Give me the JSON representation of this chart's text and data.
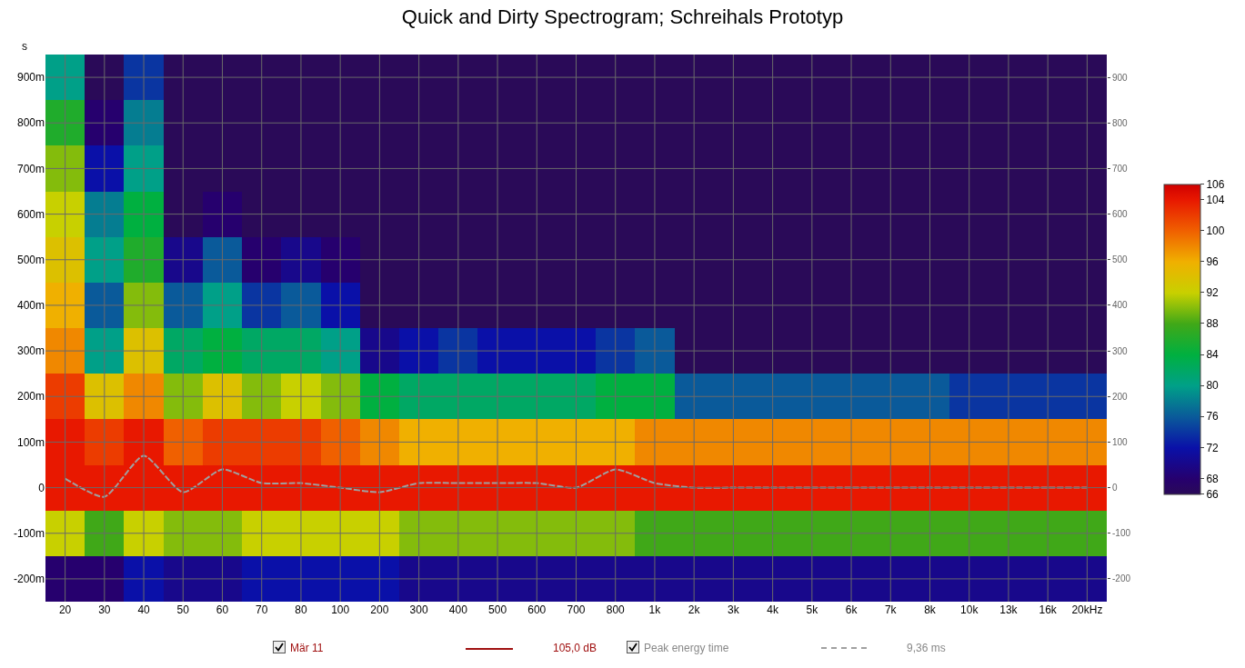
{
  "chart_data": {
    "type": "heatmap",
    "title": "Quick and Dirty Spectrogram; Schreihals Prototyp",
    "ylabel": "s",
    "categories": [
      "20",
      "30",
      "40",
      "50",
      "60",
      "70",
      "80",
      "100",
      "200",
      "300",
      "400",
      "500",
      "600",
      "700",
      "800",
      "1k",
      "2k",
      "3k",
      "4k",
      "5k",
      "6k",
      "7k",
      "8k",
      "10k",
      "13k",
      "16k",
      "20kHz"
    ],
    "y_categories": [
      "900m",
      "800m",
      "700m",
      "600m",
      "500m",
      "400m",
      "300m",
      "200m",
      "100m",
      "0",
      "-100m",
      "-200m"
    ],
    "cells": [
      [
        80,
        66,
        74,
        66,
        66,
        66,
        66,
        66,
        66,
        66,
        66,
        66,
        66,
        66,
        66,
        66,
        66,
        66,
        66,
        66,
        66,
        66,
        66,
        66,
        66,
        66,
        66
      ],
      [
        86,
        68,
        78,
        66,
        66,
        66,
        66,
        66,
        66,
        66,
        66,
        66,
        66,
        66,
        66,
        66,
        66,
        66,
        66,
        66,
        66,
        66,
        66,
        66,
        66,
        66,
        66
      ],
      [
        90,
        72,
        80,
        66,
        66,
        66,
        66,
        66,
        66,
        66,
        66,
        66,
        66,
        66,
        66,
        66,
        66,
        66,
        66,
        66,
        66,
        66,
        66,
        66,
        66,
        66,
        66
      ],
      [
        92,
        78,
        84,
        66,
        68,
        66,
        66,
        66,
        66,
        66,
        66,
        66,
        66,
        66,
        66,
        66,
        66,
        66,
        66,
        66,
        66,
        66,
        66,
        66,
        66,
        66,
        66
      ],
      [
        94,
        80,
        86,
        70,
        76,
        68,
        70,
        68,
        66,
        66,
        66,
        66,
        66,
        66,
        66,
        66,
        66,
        66,
        66,
        66,
        66,
        66,
        66,
        66,
        66,
        66,
        66
      ],
      [
        96,
        76,
        90,
        76,
        80,
        74,
        76,
        72,
        66,
        66,
        66,
        66,
        66,
        66,
        66,
        66,
        66,
        66,
        66,
        66,
        66,
        66,
        66,
        66,
        66,
        66,
        66
      ],
      [
        98,
        80,
        94,
        82,
        84,
        82,
        82,
        80,
        70,
        72,
        74,
        72,
        72,
        72,
        74,
        76,
        66,
        66,
        66,
        66,
        66,
        66,
        66,
        66,
        66,
        66,
        66
      ],
      [
        102,
        94,
        98,
        90,
        94,
        90,
        92,
        90,
        84,
        82,
        82,
        82,
        82,
        82,
        84,
        84,
        76,
        76,
        76,
        76,
        76,
        76,
        76,
        74,
        74,
        74,
        74
      ],
      [
        104,
        102,
        104,
        100,
        102,
        102,
        102,
        100,
        98,
        96,
        96,
        96,
        96,
        96,
        96,
        98,
        98,
        98,
        98,
        98,
        98,
        98,
        98,
        98,
        98,
        98,
        98
      ],
      [
        104,
        104,
        104,
        104,
        104,
        104,
        104,
        104,
        104,
        104,
        104,
        104,
        104,
        104,
        104,
        104,
        104,
        104,
        104,
        104,
        104,
        104,
        104,
        104,
        104,
        104,
        104
      ],
      [
        92,
        88,
        92,
        90,
        90,
        92,
        92,
        92,
        92,
        90,
        90,
        90,
        90,
        90,
        90,
        88,
        88,
        88,
        88,
        88,
        88,
        88,
        88,
        88,
        88,
        88,
        88
      ],
      [
        68,
        68,
        72,
        70,
        70,
        72,
        72,
        72,
        72,
        70,
        70,
        70,
        70,
        70,
        70,
        70,
        70,
        70,
        70,
        70,
        70,
        70,
        70,
        70,
        70,
        70,
        70
      ]
    ],
    "clim": [
      66,
      106
    ],
    "cticks": [
      66,
      68,
      72,
      76,
      80,
      84,
      88,
      92,
      96,
      100,
      104,
      106
    ],
    "y2lim": [
      -250,
      950
    ],
    "y2ticks": [
      -200,
      -100,
      0,
      100,
      200,
      300,
      400,
      500,
      600,
      700,
      800,
      900
    ],
    "grid": true,
    "legend": "bottom",
    "series": [
      {
        "name": "Peak energy time",
        "type": "line",
        "axis": "y2",
        "color": "#a0a0a0",
        "line_style": "dashed",
        "x": [
          "20",
          "30",
          "40",
          "50",
          "60",
          "70",
          "80",
          "100",
          "200",
          "300",
          "400",
          "500",
          "600",
          "700",
          "800",
          "1k",
          "2k",
          "3k",
          "4k",
          "5k",
          "6k",
          "7k",
          "8k",
          "10k",
          "13k",
          "16k",
          "20kHz"
        ],
        "values": [
          20,
          -20,
          70,
          -10,
          40,
          10,
          10,
          0,
          -10,
          10,
          10,
          10,
          10,
          0,
          40,
          10,
          0,
          0,
          0,
          0,
          0,
          0,
          0,
          0,
          0,
          0,
          0
        ]
      }
    ],
    "annotations": [
      "Mär 11",
      "105,0 dB",
      "9,36 ms"
    ]
  }
}
